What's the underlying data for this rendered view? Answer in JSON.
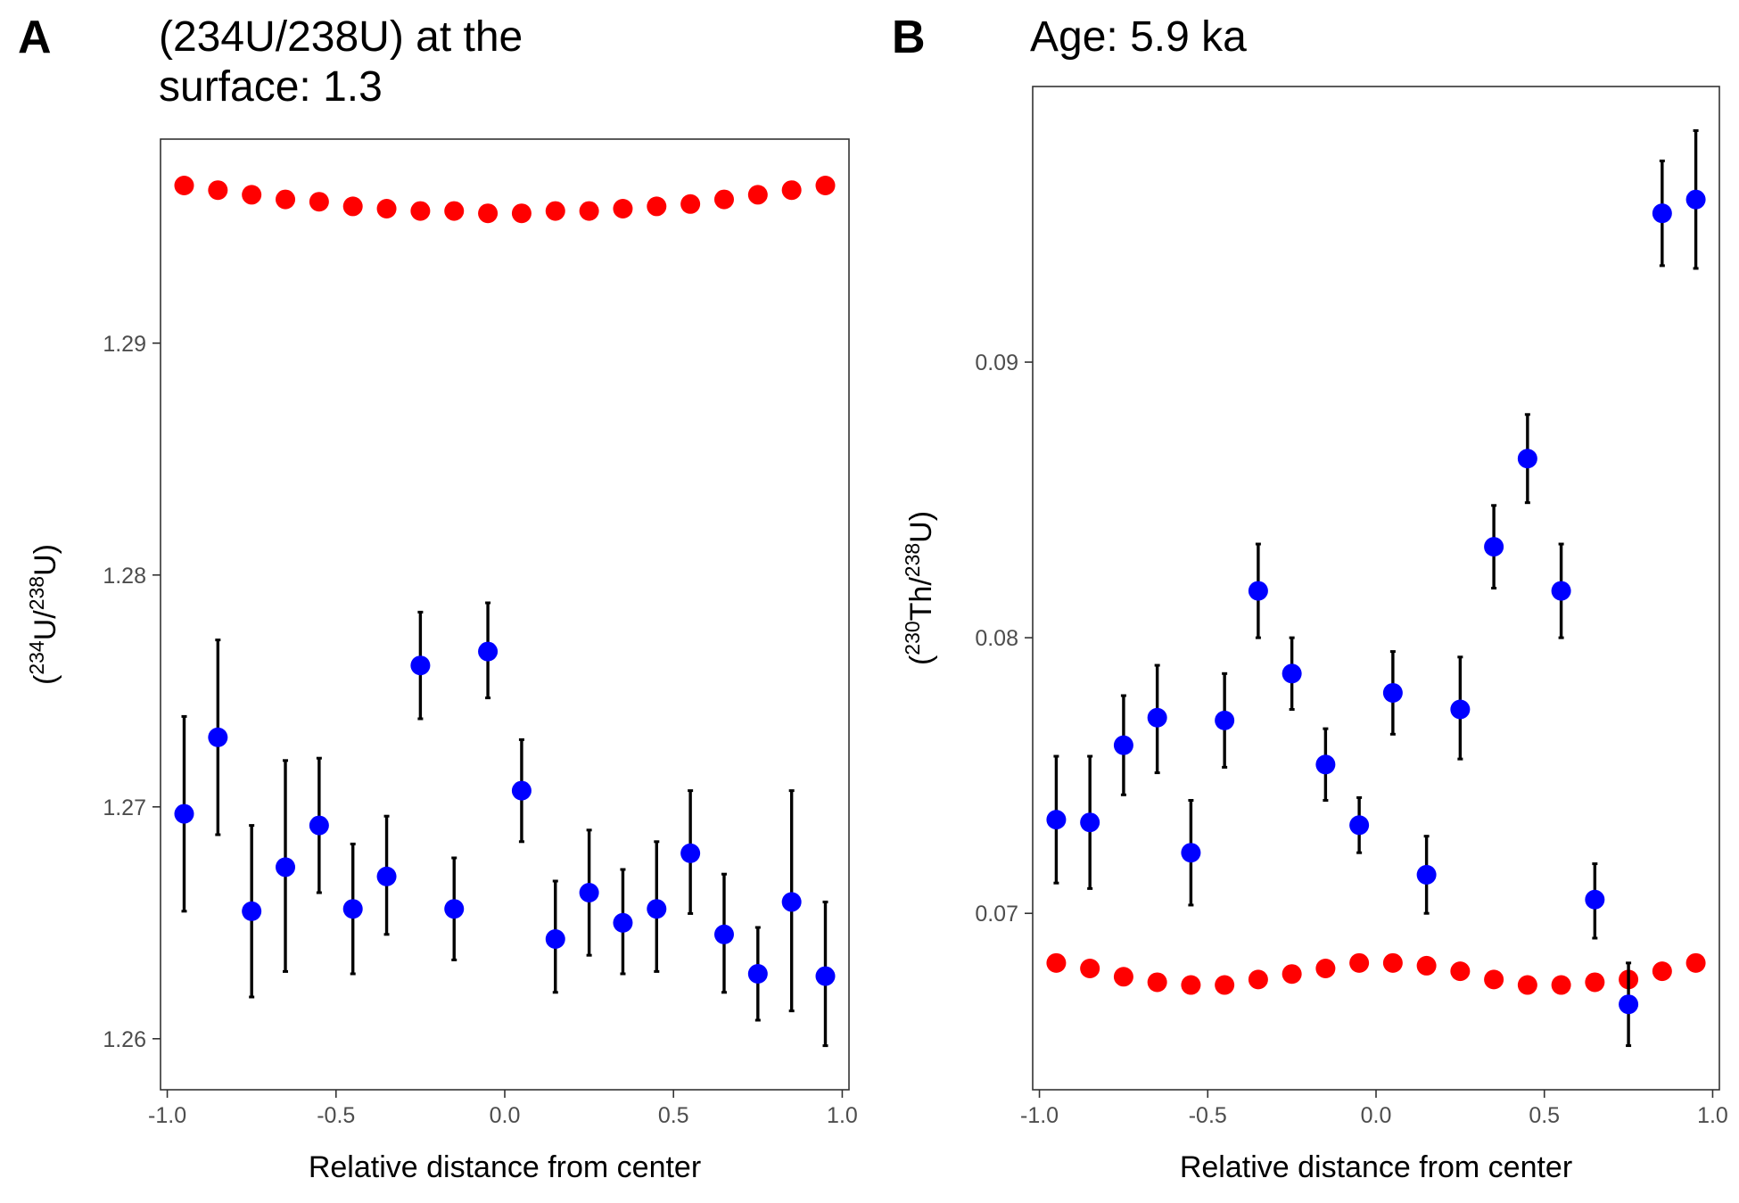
{
  "panels": [
    {
      "letter": "A",
      "title_line1": "(234U/238U) at the",
      "title_line2": "surface: 1.3",
      "xlabel": "Relative distance from center",
      "ylabel_parts": [
        "(",
        "234",
        "U/",
        "238",
        "U)"
      ]
    },
    {
      "letter": "B",
      "title_line1": "Age: 5.9 ka",
      "title_line2": "",
      "xlabel": "Relative distance from center",
      "ylabel_parts": [
        "(",
        "230",
        "Th/",
        "238",
        "U)"
      ]
    }
  ],
  "chart_data": [
    {
      "type": "scatter",
      "panel": "A",
      "title": "(234U/238U) at the surface: 1.3",
      "xlabel": "Relative distance from center",
      "ylabel": "(234U/238U)",
      "xlim": [
        -1.02,
        1.02
      ],
      "ylim": [
        1.2578,
        1.2988
      ],
      "xticks": [
        -1.0,
        -0.5,
        0.0,
        0.5,
        1.0
      ],
      "xtick_labels": [
        "-1.0",
        "-0.5",
        "0.0",
        "0.5",
        "1.0"
      ],
      "yticks": [
        1.26,
        1.27,
        1.28,
        1.29
      ],
      "ytick_labels": [
        "1.26",
        "1.27",
        "1.28",
        "1.29"
      ],
      "grid": false,
      "legend": "none",
      "series": [
        {
          "color": "#ff0000",
          "x": [
            -0.95,
            -0.85,
            -0.75,
            -0.65,
            -0.55,
            -0.45,
            -0.35,
            -0.25,
            -0.15,
            -0.05,
            0.05,
            0.15,
            0.25,
            0.35,
            0.45,
            0.55,
            0.65,
            0.75,
            0.85,
            0.95
          ],
          "y": [
            1.2968,
            1.2966,
            1.2964,
            1.2962,
            1.2961,
            1.2959,
            1.2958,
            1.2957,
            1.2957,
            1.2956,
            1.2956,
            1.2957,
            1.2957,
            1.2958,
            1.2959,
            1.296,
            1.2962,
            1.2964,
            1.2966,
            1.2968
          ]
        },
        {
          "color": "#0000ff",
          "x": [
            -0.95,
            -0.85,
            -0.75,
            -0.65,
            -0.55,
            -0.45,
            -0.35,
            -0.25,
            -0.15,
            -0.05,
            0.05,
            0.15,
            0.25,
            0.35,
            0.45,
            0.55,
            0.65,
            0.75,
            0.85,
            0.95
          ],
          "y": [
            1.2697,
            1.273,
            1.2655,
            1.2674,
            1.2692,
            1.2656,
            1.267,
            1.2761,
            1.2656,
            1.2767,
            1.2707,
            1.2643,
            1.2663,
            1.265,
            1.2656,
            1.268,
            1.2645,
            1.2628,
            1.2659,
            1.2627
          ],
          "err_low": [
            1.2655,
            1.2688,
            1.2618,
            1.2629,
            1.2663,
            1.2628,
            1.2645,
            1.2738,
            1.2634,
            1.2747,
            1.2685,
            1.262,
            1.2636,
            1.2628,
            1.2629,
            1.2654,
            1.262,
            1.2608,
            1.2612,
            1.2597
          ],
          "err_high": [
            1.2739,
            1.2772,
            1.2692,
            1.272,
            1.2721,
            1.2684,
            1.2696,
            1.2784,
            1.2678,
            1.2788,
            1.2729,
            1.2668,
            1.269,
            1.2673,
            1.2685,
            1.2707,
            1.2671,
            1.2648,
            1.2707,
            1.2659
          ]
        }
      ]
    },
    {
      "type": "scatter",
      "panel": "B",
      "title": "Age: 5.9 ka",
      "xlabel": "Relative distance from center",
      "ylabel": "(230Th/238U)",
      "xlim": [
        -1.02,
        1.02
      ],
      "ylim": [
        0.0636,
        0.1
      ],
      "xticks": [
        -1.0,
        -0.5,
        0.0,
        0.5,
        1.0
      ],
      "xtick_labels": [
        "-1.0",
        "-0.5",
        "0.0",
        "0.5",
        "1.0"
      ],
      "yticks": [
        0.07,
        0.08,
        0.09
      ],
      "ytick_labels": [
        "0.07",
        "0.08",
        "0.09"
      ],
      "grid": false,
      "legend": "none",
      "series": [
        {
          "color": "#ff0000",
          "x": [
            -0.95,
            -0.85,
            -0.75,
            -0.65,
            -0.55,
            -0.45,
            -0.35,
            -0.25,
            -0.15,
            -0.05,
            0.05,
            0.15,
            0.25,
            0.35,
            0.45,
            0.55,
            0.65,
            0.75,
            0.85,
            0.95
          ],
          "y": [
            0.0682,
            0.068,
            0.0677,
            0.0675,
            0.0674,
            0.0674,
            0.0676,
            0.0678,
            0.068,
            0.0682,
            0.0682,
            0.0681,
            0.0679,
            0.0676,
            0.0674,
            0.0674,
            0.0675,
            0.0676,
            0.0679,
            0.0682
          ]
        },
        {
          "color": "#0000ff",
          "x": [
            -0.95,
            -0.85,
            -0.75,
            -0.65,
            -0.55,
            -0.45,
            -0.35,
            -0.25,
            -0.15,
            -0.05,
            0.05,
            0.15,
            0.25,
            0.35,
            0.45,
            0.55,
            0.65,
            0.75,
            0.85,
            0.95
          ],
          "y": [
            0.0734,
            0.0733,
            0.0761,
            0.0771,
            0.0722,
            0.077,
            0.0817,
            0.0787,
            0.0754,
            0.0732,
            0.078,
            0.0714,
            0.0774,
            0.0833,
            0.0865,
            0.0817,
            0.0705,
            0.0667,
            0.0954,
            0.0959
          ],
          "err_low": [
            0.0711,
            0.0709,
            0.0743,
            0.0751,
            0.0703,
            0.0753,
            0.08,
            0.0774,
            0.0741,
            0.0722,
            0.0765,
            0.07,
            0.0756,
            0.0818,
            0.0849,
            0.08,
            0.0691,
            0.0652,
            0.0935,
            0.0934
          ],
          "err_high": [
            0.0757,
            0.0757,
            0.0779,
            0.079,
            0.0741,
            0.0787,
            0.0834,
            0.08,
            0.0767,
            0.0742,
            0.0795,
            0.0728,
            0.0793,
            0.0848,
            0.0881,
            0.0834,
            0.0718,
            0.0682,
            0.0973,
            0.0984
          ]
        }
      ]
    }
  ]
}
